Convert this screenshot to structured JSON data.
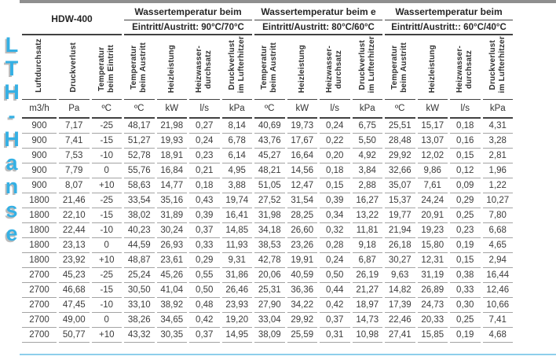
{
  "colors": {
    "watermark_blue": "#35b0e4",
    "highlight_blue": "#8ecfeb",
    "topbar_gray": "#8f8f8f"
  },
  "watermark": {
    "text": "LTH-Hanse"
  },
  "table": {
    "model": "HDW-400",
    "groups": [
      {
        "title": "Wassertemperatur beim",
        "subtitle": "Eintritt/Austritt: 90°C/70°C"
      },
      {
        "title": "Wassertemperatur beim e",
        "subtitle": "Eintritt/Austritt: 80°C/60°C"
      },
      {
        "title": "Wassertemperatur beim",
        "subtitle": "Eintritt/Austritt:: 60°C/40°C"
      }
    ],
    "rotated_headers": [
      "Luftdurchsatz",
      "Druckverlust",
      "Temperatur\nbeim Eintritt",
      "Temperatur\nbeim Austritt",
      "Heizleistung",
      "Heizwasser-\ndurchsatz",
      "Druckverlust\nim Lufterhitzer",
      "Temperatur\nbeim Austritt",
      "Heizleistung",
      "Heizwasser-\ndurchsatz",
      "Druckverlust\nim Lufterhitzer",
      "Temperatur\nbeim Austritt",
      "Heizleistung",
      "Heizwasser-\ndurchsatz",
      "Druckverlust\nim Lufterhitzer"
    ],
    "units": [
      "m3/h",
      "Pa",
      "ºC",
      "ºC",
      "kW",
      "l/s",
      "kPa",
      "ºC",
      "kW",
      "l/s",
      "kPa",
      "ºC",
      "kW",
      "l/s",
      "kPa"
    ],
    "rows": [
      [
        "900",
        "7,17",
        "-25",
        "48,17",
        "21,98",
        "0,27",
        "8,14",
        "40,69",
        "19,73",
        "0,24",
        "6,75",
        "25,51",
        "15,17",
        "0,18",
        "4,31"
      ],
      [
        "900",
        "7,41",
        "-15",
        "51,27",
        "19,93",
        "0,24",
        "6,78",
        "43,76",
        "17,67",
        "0,22",
        "5,50",
        "28,48",
        "13,07",
        "0,16",
        "3,28"
      ],
      [
        "900",
        "7,53",
        "-10",
        "52,78",
        "18,91",
        "0,23",
        "6,14",
        "45,27",
        "16,64",
        "0,20",
        "4,92",
        "29,92",
        "12,02",
        "0,15",
        "2,81"
      ],
      [
        "900",
        "7,79",
        "0",
        "55,76",
        "16,84",
        "0,21",
        "4,95",
        "48,21",
        "14,56",
        "0,18",
        "3,84",
        "32,66",
        "9,86",
        "0,12",
        "1,96"
      ],
      [
        "900",
        "8,07",
        "+10",
        "58,63",
        "14,77",
        "0,18",
        "3,88",
        "51,05",
        "12,47",
        "0,15",
        "2,88",
        "35,07",
        "7,61",
        "0,09",
        "1,22"
      ],
      [
        "1800",
        "21,46",
        "-25",
        "33,54",
        "35,16",
        "0,43",
        "19,74",
        "27,52",
        "31,54",
        "0,39",
        "16,27",
        "15,37",
        "24,24",
        "0,29",
        "10,27"
      ],
      [
        "1800",
        "22,10",
        "-15",
        "38,02",
        "31,89",
        "0,39",
        "16,41",
        "31,98",
        "28,25",
        "0,34",
        "13,22",
        "19,77",
        "20,91",
        "0,25",
        "7,80"
      ],
      [
        "1800",
        "22,44",
        "-10",
        "40,23",
        "30,24",
        "0,37",
        "14,85",
        "34,18",
        "26,60",
        "0,32",
        "11,81",
        "21,94",
        "19,23",
        "0,23",
        "6,68"
      ],
      [
        "1800",
        "23,13",
        "0",
        "44,59",
        "26,93",
        "0,33",
        "11,93",
        "38,53",
        "23,26",
        "0,28",
        "9,18",
        "26,18",
        "15,80",
        "0,19",
        "4,65"
      ],
      [
        "1800",
        "23,92",
        "+10",
        "48,87",
        "23,61",
        "0,29",
        "9,31",
        "42,78",
        "19,91",
        "0,24",
        "6,87",
        "30,27",
        "12,31",
        "0,15",
        "2,94"
      ],
      [
        "2700",
        "45,23",
        "-25",
        "25,24",
        "45,26",
        "0,55",
        "31,86",
        "20,06",
        "40,59",
        "0,50",
        "26,19",
        "9,63",
        "31,19",
        "0,38",
        "16,44"
      ],
      [
        "2700",
        "46,68",
        "-15",
        "30,50",
        "41,04",
        "0,50",
        "26,46",
        "25,31",
        "36,36",
        "0,44",
        "21,27",
        "14,82",
        "26,89",
        "0,33",
        "12,46"
      ],
      [
        "2700",
        "47,45",
        "-10",
        "33,10",
        "38,92",
        "0,48",
        "23,93",
        "27,90",
        "34,22",
        "0,42",
        "18,97",
        "17,39",
        "24,73",
        "0,30",
        "10,66"
      ],
      [
        "2700",
        "49,00",
        "0",
        "38,26",
        "34,65",
        "0,42",
        "19,20",
        "33,04",
        "29,92",
        "0,37",
        "14,73",
        "22,46",
        "20,33",
        "0,25",
        "7,41"
      ],
      [
        "2700",
        "50,77",
        "+10",
        "43,32",
        "30,35",
        "0,37",
        "14,95",
        "38,09",
        "25,59",
        "0,31",
        "10,98",
        "27,41",
        "15,85",
        "0,19",
        "4,68"
      ]
    ]
  }
}
